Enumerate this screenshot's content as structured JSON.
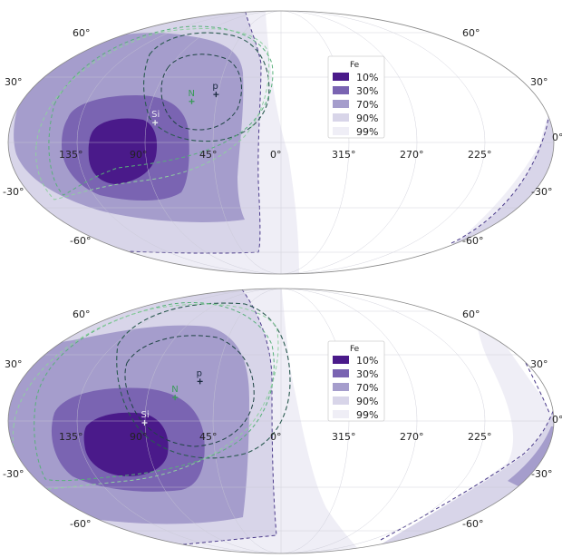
{
  "chart_data": [
    {
      "type": "skymap",
      "projection": "mollweide",
      "legend_title": "Fe",
      "legend": [
        "10%",
        "30%",
        "70%",
        "90%",
        "99%"
      ],
      "legend_colors": [
        "#4a1a8a",
        "#7a64b2",
        "#a59dcc",
        "#d8d5e9",
        "#efeef6"
      ],
      "lat_labels": {
        "left": [
          "60°",
          "30°",
          "-30°",
          "-60°"
        ],
        "right": [
          "60°",
          "30°",
          "0°",
          "-30°",
          "-60°"
        ]
      },
      "lon_labels": [
        "135°",
        "90°",
        "45°",
        "0°",
        "315°",
        "270°",
        "225°"
      ],
      "sources": [
        {
          "label": "p",
          "lon": 46,
          "lat": 27,
          "color": "#1a2a40"
        },
        {
          "label": "N",
          "lon": 62,
          "lat": 23,
          "color": "#3a9a5a"
        },
        {
          "label": "Si",
          "lon": 84,
          "lat": 11,
          "color": "#e8e8f0"
        }
      ]
    },
    {
      "type": "skymap",
      "projection": "mollweide",
      "legend_title": "Fe",
      "legend": [
        "10%",
        "30%",
        "70%",
        "90%",
        "99%"
      ],
      "legend_colors": [
        "#4a1a8a",
        "#7a64b2",
        "#a59dcc",
        "#d8d5e9",
        "#efeef6"
      ],
      "lat_labels": {
        "left": [
          "60°",
          "30°",
          "-30°",
          "-60°"
        ],
        "right": [
          "60°",
          "30°",
          "0°",
          "-30°",
          "-60°"
        ]
      },
      "lon_labels": [
        "135°",
        "90°",
        "45°",
        "0°",
        "315°",
        "270°",
        "225°"
      ],
      "sources": [
        {
          "label": "p",
          "lon": 56,
          "lat": 22,
          "color": "#1a2a40"
        },
        {
          "label": "N",
          "lon": 71,
          "lat": 13,
          "color": "#3a9a5a"
        },
        {
          "label": "Si",
          "lon": 90,
          "lat": -1,
          "color": "#e8e8f0"
        }
      ]
    }
  ]
}
